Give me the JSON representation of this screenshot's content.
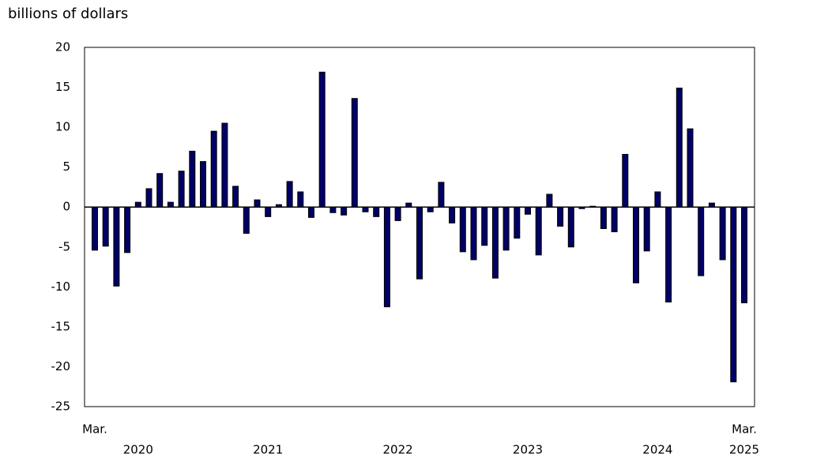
{
  "chart_data": {
    "type": "bar",
    "y_axis_label": "billions of dollars",
    "categories": [
      "Mar.",
      null,
      null,
      null,
      null,
      null,
      null,
      null,
      null,
      null,
      null,
      null,
      null,
      null,
      null,
      null,
      null,
      null,
      null,
      null,
      null,
      null,
      null,
      null,
      null,
      null,
      null,
      null,
      null,
      null,
      null,
      null,
      null,
      null,
      null,
      null,
      null,
      null,
      null,
      null,
      null,
      null,
      null,
      null,
      null,
      null,
      null,
      null,
      null,
      null,
      null,
      null,
      null,
      null,
      null,
      null,
      null,
      null,
      null,
      null,
      "Mar."
    ],
    "years": [
      null,
      null,
      null,
      null,
      "2020",
      null,
      null,
      null,
      null,
      null,
      null,
      null,
      null,
      null,
      null,
      null,
      "2021",
      null,
      null,
      null,
      null,
      null,
      null,
      null,
      null,
      null,
      null,
      null,
      "2022",
      null,
      null,
      null,
      null,
      null,
      null,
      null,
      null,
      null,
      null,
      null,
      "2023",
      null,
      null,
      null,
      null,
      null,
      null,
      null,
      null,
      null,
      null,
      null,
      "2024",
      null,
      null,
      null,
      null,
      null,
      null,
      null,
      "2025"
    ],
    "values": [
      -5.4,
      -4.9,
      -9.9,
      -5.7,
      0.6,
      2.3,
      4.2,
      0.6,
      4.5,
      7.0,
      5.7,
      9.5,
      10.5,
      2.6,
      -3.3,
      0.9,
      -1.2,
      0.3,
      3.2,
      1.9,
      -1.3,
      16.9,
      -0.7,
      -1.0,
      13.6,
      -0.6,
      -1.2,
      -12.5,
      -1.7,
      0.5,
      -9.0,
      -0.6,
      3.1,
      -2.0,
      -5.6,
      -6.6,
      -4.8,
      -8.9,
      -5.4,
      -3.9,
      -0.9,
      -6.0,
      1.6,
      -2.4,
      -5.0,
      -0.2,
      0.1,
      -2.7,
      -3.1,
      6.6,
      -9.5,
      -5.5,
      1.9,
      -11.9,
      14.9,
      9.8,
      -8.6,
      0.5,
      -6.6,
      -21.9,
      -12.0
    ],
    "color": "#000066",
    "ylim": [
      -25,
      20
    ],
    "yticks": [
      -25,
      -20,
      -15,
      -10,
      -5,
      0,
      5,
      10,
      15,
      20
    ],
    "grid": false
  }
}
